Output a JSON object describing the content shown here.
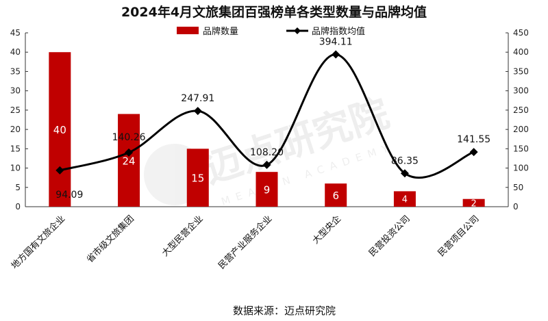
{
  "chart_data": {
    "type": "bar+line",
    "title": "2024年4月文旅集团百强榜单各类型数量与品牌均值",
    "categories": [
      "地方国有文旅企业",
      "省市级文旅集团",
      "大型民营企业",
      "民营产业服务企业",
      "大型央企",
      "民营投资公司",
      "民营项目公司"
    ],
    "series": [
      {
        "name": "品牌数量",
        "type": "bar",
        "axis": "left",
        "color": "#c00000",
        "values": [
          40,
          24,
          15,
          9,
          6,
          4,
          2
        ]
      },
      {
        "name": "品牌指数均值",
        "type": "line",
        "axis": "right",
        "color": "#000000",
        "smooth": true,
        "marker": "diamond",
        "values": [
          94.09,
          140.26,
          247.91,
          108.2,
          394.11,
          86.35,
          141.55
        ],
        "labels": [
          "94.09",
          "140.26",
          "247.91",
          "108.20",
          "394.11",
          "86.35",
          "141.55"
        ]
      }
    ],
    "y_left": {
      "lim": [
        0,
        45
      ],
      "ticks": [
        "0",
        "5",
        "10",
        "15",
        "20",
        "25",
        "30",
        "35",
        "40",
        "45"
      ]
    },
    "y_right": {
      "lim": [
        0,
        450
      ],
      "ticks": [
        "0",
        "50",
        "100",
        "150",
        "200",
        "250",
        "300",
        "350",
        "400",
        "450"
      ]
    },
    "grid": false,
    "legend": "top-center",
    "source": "数据来源：迈点研究院",
    "watermark": "迈点研究院 MEADIN ACADEMY"
  }
}
